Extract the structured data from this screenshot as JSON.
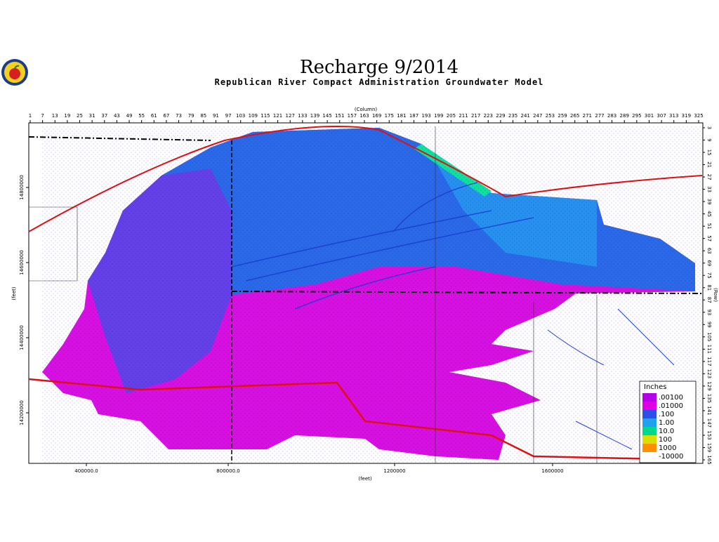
{
  "header": {
    "title": "Recharge 9/2014",
    "subtitle": "Republican River Compact Administration Groundwater Model"
  },
  "columns": {
    "label": "(Column)",
    "ticks": [
      1,
      7,
      13,
      19,
      25,
      31,
      37,
      43,
      49,
      55,
      61,
      67,
      73,
      79,
      85,
      91,
      97,
      103,
      109,
      115,
      121,
      127,
      133,
      139,
      145,
      151,
      157,
      163,
      169,
      175,
      181,
      187,
      193,
      199,
      205,
      211,
      217,
      223,
      229,
      235,
      241,
      247,
      253,
      259,
      265,
      271,
      277,
      283,
      289,
      295,
      301,
      307,
      313,
      319,
      325
    ]
  },
  "rows": {
    "label": "(Row)",
    "ticks": [
      3,
      9,
      15,
      21,
      27,
      33,
      39,
      45,
      51,
      57,
      63,
      69,
      75,
      81,
      87,
      93,
      99,
      105,
      111,
      117,
      123,
      129,
      135,
      141,
      147,
      153,
      159,
      165
    ]
  },
  "x_axis": {
    "label": "(feet)",
    "ticks": [
      "400000.0",
      "800000.0",
      "1200000",
      "1600000"
    ]
  },
  "y_axis": {
    "label": "(feet)",
    "ticks": [
      "14800000",
      "14600000",
      "14400000",
      "14200000"
    ]
  },
  "legend": {
    "title": "Inches",
    "items": [
      {
        "label": ".00100",
        "color": "#b400e6"
      },
      {
        "label": ".01000",
        "color": "#e000e6"
      },
      {
        "label": ".100",
        "color": "#2e4ee8"
      },
      {
        "label": "1.00",
        "color": "#1fa0f0"
      },
      {
        "label": "10.0",
        "color": "#00d890"
      },
      {
        "label": "100",
        "color": "#d8e000"
      },
      {
        "label": "1000",
        "color": "#ff9000"
      },
      {
        "label": "-10000",
        "color": "#ffffff"
      }
    ]
  }
}
